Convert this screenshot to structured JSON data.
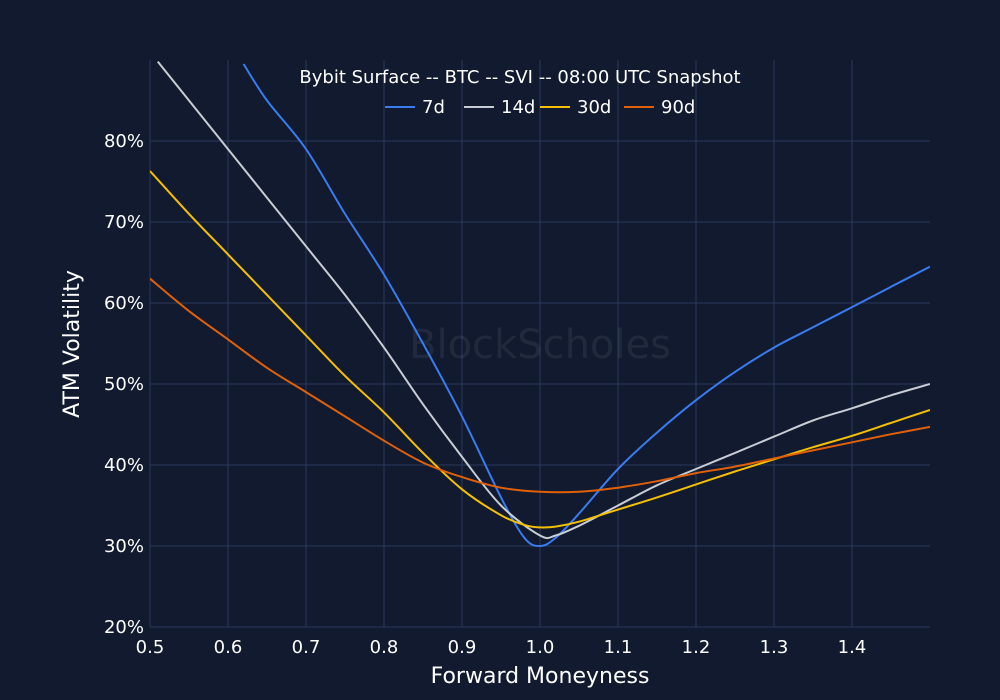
{
  "chart_data": {
    "type": "line",
    "title": "Bybit Surface -- BTC -- SVI -- 08:00 UTC Snapshot",
    "xlabel": "Forward Moneyness",
    "ylabel": "ATM Volatility",
    "xlim": [
      0.5,
      1.5
    ],
    "ylim": [
      20,
      90
    ],
    "x_ticks": [
      0.5,
      0.6,
      0.7,
      0.8,
      0.9,
      1.0,
      1.1,
      1.2,
      1.3,
      1.4
    ],
    "x_tick_labels": [
      "0.5",
      "0.6",
      "0.7",
      "0.8",
      "0.9",
      "1.0",
      "1.1",
      "1.2",
      "1.3",
      "1.4"
    ],
    "y_ticks": [
      20,
      30,
      40,
      50,
      60,
      70,
      80
    ],
    "y_tick_labels": [
      "20%",
      "30%",
      "40%",
      "50%",
      "60%",
      "70%",
      "80%"
    ],
    "grid": true,
    "legend_position": "top-center",
    "watermark": "BlockScholes",
    "background": "#111a2e",
    "series": [
      {
        "name": "7d",
        "color": "#3a7bf0",
        "x": [
          0.62,
          0.65,
          0.7,
          0.75,
          0.8,
          0.85,
          0.9,
          0.95,
          0.98,
          1.0,
          1.02,
          1.05,
          1.1,
          1.15,
          1.2,
          1.25,
          1.3,
          1.35,
          1.4,
          1.45,
          1.5
        ],
        "y": [
          89.5,
          85,
          79,
          71,
          63.5,
          55,
          46,
          36,
          31,
          30,
          31,
          34,
          39.5,
          44,
          48,
          51.5,
          54.5,
          57,
          59.5,
          62,
          64.5
        ]
      },
      {
        "name": "14d",
        "color": "#c8ccd4",
        "x": [
          0.51,
          0.55,
          0.6,
          0.65,
          0.7,
          0.75,
          0.8,
          0.85,
          0.9,
          0.95,
          1.0,
          1.02,
          1.05,
          1.1,
          1.15,
          1.2,
          1.25,
          1.3,
          1.35,
          1.4,
          1.45,
          1.5
        ],
        "y": [
          89.8,
          85,
          79,
          73,
          67,
          61,
          54.5,
          47.5,
          41,
          35,
          31.3,
          31.3,
          32.5,
          35,
          37.5,
          39.5,
          41.5,
          43.5,
          45.5,
          47,
          48.6,
          50
        ]
      },
      {
        "name": "30d",
        "color": "#f5c000",
        "x": [
          0.5,
          0.55,
          0.6,
          0.65,
          0.7,
          0.75,
          0.8,
          0.85,
          0.9,
          0.95,
          0.98,
          1.0,
          1.02,
          1.05,
          1.1,
          1.15,
          1.2,
          1.25,
          1.3,
          1.35,
          1.4,
          1.45,
          1.5
        ],
        "y": [
          76.3,
          71,
          66,
          61,
          56,
          51,
          46.5,
          41.5,
          37,
          33.8,
          32.6,
          32.3,
          32.4,
          33,
          34.5,
          36,
          37.6,
          39.2,
          40.7,
          42.2,
          43.6,
          45.2,
          46.8
        ]
      },
      {
        "name": "90d",
        "color": "#e0600a",
        "x": [
          0.5,
          0.55,
          0.6,
          0.65,
          0.7,
          0.75,
          0.8,
          0.85,
          0.9,
          0.95,
          1.0,
          1.05,
          1.1,
          1.15,
          1.2,
          1.25,
          1.3,
          1.35,
          1.4,
          1.45,
          1.5
        ],
        "y": [
          63,
          59,
          55.5,
          52,
          49,
          46,
          43,
          40.3,
          38.5,
          37.2,
          36.7,
          36.7,
          37.2,
          38,
          39,
          39.8,
          40.8,
          41.8,
          42.8,
          43.8,
          44.7
        ]
      }
    ]
  }
}
